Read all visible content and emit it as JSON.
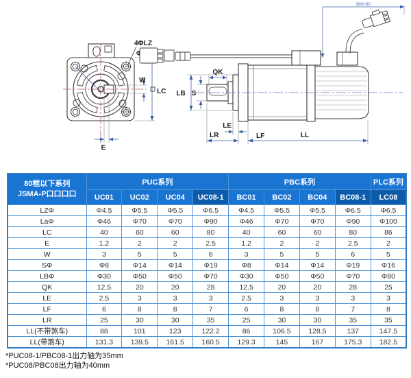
{
  "colors": {
    "header_blue": "#1a74d2",
    "header_dark_blue": "#0d5cab",
    "table_border_blue": "#4f93d6",
    "dimension_blue": "#3a5fa8",
    "centerline_red": "#c25b5b",
    "outline_dark": "#3a3a3a"
  },
  "drawing": {
    "front_view_labels": {
      "holes": "4ΦLZ",
      "flange_dia": "Φ La",
      "key_width": "W",
      "frame_size": "LC",
      "offset": "E"
    },
    "side_view_labels": {
      "key_length": "QK",
      "shaft_dia": "S",
      "pilot_dia": "LB",
      "le": "LE",
      "lf": "LF",
      "lr": "LR",
      "ll": "LL",
      "cable_length": "300±30"
    }
  },
  "table": {
    "corner_header_line1": "80框以下系列",
    "corner_header_line2": "JSMA-P口口口口",
    "groups": [
      {
        "label": "PUC系列",
        "span": 4
      },
      {
        "label": "PBC系列",
        "span": 4
      },
      {
        "label": "PLC系列",
        "span": 1
      }
    ],
    "columns": [
      {
        "label": "UC01",
        "highlighted": false
      },
      {
        "label": "UC02",
        "highlighted": false
      },
      {
        "label": "UC04",
        "highlighted": false
      },
      {
        "label": "UC08-1",
        "highlighted": true
      },
      {
        "label": "BC01",
        "highlighted": false
      },
      {
        "label": "BC02",
        "highlighted": false
      },
      {
        "label": "BC04",
        "highlighted": false
      },
      {
        "label": "BC08-1",
        "highlighted": true
      },
      {
        "label": "LC08",
        "highlighted": true
      }
    ],
    "rows": [
      {
        "label": "LZΦ",
        "values": [
          "Φ4.5",
          "Φ5.5",
          "Φ5.5",
          "Φ6.5",
          "Φ4.5",
          "Φ5.5",
          "Φ5.5",
          "Φ6.5",
          "Φ6.5"
        ]
      },
      {
        "label": "LaΦ",
        "values": [
          "Φ46",
          "Φ70",
          "Φ70",
          "Φ90",
          "Φ46",
          "Φ70",
          "Φ70",
          "Φ90",
          "Φ100"
        ]
      },
      {
        "label": "LC",
        "values": [
          "40",
          "60",
          "60",
          "80",
          "40",
          "60",
          "60",
          "80",
          "86"
        ]
      },
      {
        "label": "E",
        "values": [
          "1.2",
          "2",
          "2",
          "2.5",
          "1.2",
          "2",
          "2",
          "2.5",
          "2"
        ]
      },
      {
        "label": "W",
        "values": [
          "3",
          "5",
          "5",
          "6",
          "3",
          "5",
          "5",
          "6",
          "5"
        ]
      },
      {
        "label": "SΦ",
        "values": [
          "Φ8",
          "Φ14",
          "Φ14",
          "Φ19",
          "Φ8",
          "Φ14",
          "Φ14",
          "Φ19",
          "Φ16"
        ]
      },
      {
        "label": "LBΦ",
        "values": [
          "Φ30",
          "Φ50",
          "Φ50",
          "Φ70",
          "Φ30",
          "Φ50",
          "Φ50",
          "Φ70",
          "Φ80"
        ]
      },
      {
        "label": "QK",
        "values": [
          "12.5",
          "20",
          "20",
          "28",
          "12.5",
          "20",
          "20",
          "28",
          "25"
        ]
      },
      {
        "label": "LE",
        "values": [
          "2.5",
          "3",
          "3",
          "3",
          "2.5",
          "3",
          "3",
          "3",
          "3"
        ]
      },
      {
        "label": "LF",
        "values": [
          "6",
          "8",
          "8",
          "7",
          "6",
          "8",
          "8",
          "7",
          "8"
        ]
      },
      {
        "label": "LR",
        "values": [
          "25",
          "30",
          "30",
          "35",
          "25",
          "30",
          "30",
          "35",
          "35"
        ]
      },
      {
        "label": "LL(不带煞车)",
        "values": [
          "88",
          "101",
          "123",
          "122.2",
          "86",
          "106.5",
          "128.5",
          "137",
          "147.5"
        ]
      },
      {
        "label": "LL(带煞车)",
        "values": [
          "131.3",
          "139.5",
          "161.5",
          "160.5",
          "129.3",
          "145",
          "167",
          "175.3",
          "182.5"
        ]
      }
    ]
  },
  "footnotes": [
    "*PUC08-1/PBC08-1出力轴为35mm",
    "*PUC08/PBC08出力轴为40mm"
  ]
}
